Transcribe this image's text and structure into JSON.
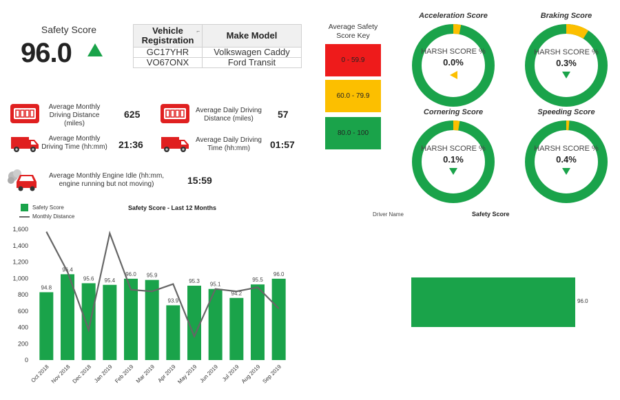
{
  "safety": {
    "title": "Safety Score",
    "value": "96.0",
    "trend_icon": "up-triangle-icon",
    "trend_color": "#1aa34a"
  },
  "vehicle_table": {
    "headers": [
      "Vehicle Registration",
      "Make Model"
    ],
    "rows": [
      [
        "GC17YHR",
        "Volkswagen Caddy"
      ],
      [
        "VO67ONX",
        "Ford Transit"
      ]
    ]
  },
  "key": {
    "title": "Average Safety Score Key",
    "bands": [
      {
        "label": "0 - 59.9",
        "color": "#ee1b1b"
      },
      {
        "label": "60.0 - 79.9",
        "color": "#fcbf00"
      },
      {
        "label": "80.0 - 100",
        "color": "#1aa34a"
      }
    ]
  },
  "metrics": {
    "avg_monthly_distance": {
      "label": "Average Monthly Driving Distance (miles)",
      "value": "625",
      "icon": "odometer-icon"
    },
    "avg_daily_distance": {
      "label": "Average Daily Driving Distance (miles)",
      "value": "57",
      "icon": "odometer-icon"
    },
    "avg_monthly_time": {
      "label": "Average Monthly Driving Time (hh:mm)",
      "value": "21:36",
      "icon": "van-icon"
    },
    "avg_daily_time": {
      "label": "Average Daily Driving Time (hh:mm)",
      "value": "01:57",
      "icon": "van-icon"
    },
    "avg_monthly_idle": {
      "label": "Average Monthly Engine Idle (hh:mm, engine running but not moving)",
      "value": "15:59",
      "icon": "idling-car-icon"
    }
  },
  "gauges": [
    {
      "title": "Acceleration Score",
      "harsh": "HARSH SCORE %",
      "value": "0.0%",
      "fraction": 0.03,
      "indicator": "left-triangle",
      "indicator_color": "#fcbf00"
    },
    {
      "title": "Braking Score",
      "harsh": "HARSH SCORE %",
      "value": "0.3%",
      "fraction": 0.09,
      "indicator": "down-triangle",
      "indicator_color": "#1aa34a"
    },
    {
      "title": "Cornering Score",
      "harsh": "HARSH SCORE %",
      "value": "0.1%",
      "fraction": 0.025,
      "indicator": "down-triangle",
      "indicator_color": "#1aa34a"
    },
    {
      "title": "Speeding Score",
      "harsh": "HARSH SCORE %",
      "value": "0.4%",
      "fraction": 0.012,
      "indicator": "down-triangle",
      "indicator_color": "#1aa34a"
    }
  ],
  "colors": {
    "green": "#1aa34a",
    "amber": "#fcbf00",
    "red": "#ee1b1b",
    "line": "#666666"
  },
  "chart_data": {
    "type": "bar",
    "title": "Safety Score - Last 12 Months",
    "legend": [
      "Safety Score",
      "Monthly Distance"
    ],
    "legend_position": "top-left",
    "categories": [
      "Oct 2018",
      "Nov 2018",
      "Dec 2018",
      "Jan 2019",
      "Feb 2019",
      "Mar 2019",
      "Apr 2019",
      "May 2019",
      "Jun 2019",
      "Jul 2019",
      "Aug 2019",
      "Sep 2019"
    ],
    "series": [
      {
        "name": "Safety Score",
        "kind": "bar",
        "values": [
          94.8,
          96.4,
          95.6,
          95.4,
          96.0,
          95.9,
          93.9,
          95.3,
          95.1,
          94.2,
          95.5,
          96.0
        ],
        "labels": [
          "94.8",
          "96.4",
          "95.6",
          "95.4",
          "96.0",
          "95.9",
          "93.9",
          "95.3",
          "95.1",
          "94.2",
          "95.5",
          "96.0"
        ],
        "bar_heights": [
          830,
          1050,
          940,
          920,
          995,
          980,
          670,
          910,
          870,
          760,
          925,
          995
        ]
      },
      {
        "name": "Monthly Distance",
        "kind": "line",
        "values": [
          1570,
          1080,
          370,
          1550,
          860,
          840,
          930,
          290,
          870,
          840,
          890,
          630
        ]
      }
    ],
    "yticks": [
      "0",
      "200",
      "400",
      "600",
      "800",
      "1,000",
      "1,200",
      "1,400",
      "1,600"
    ],
    "ylim": [
      0,
      1600
    ],
    "grid": false
  },
  "right_table": {
    "headers": [
      "Driver Name",
      "Safety Score"
    ],
    "bar_label": "96.0",
    "bar_value": 96.0
  }
}
